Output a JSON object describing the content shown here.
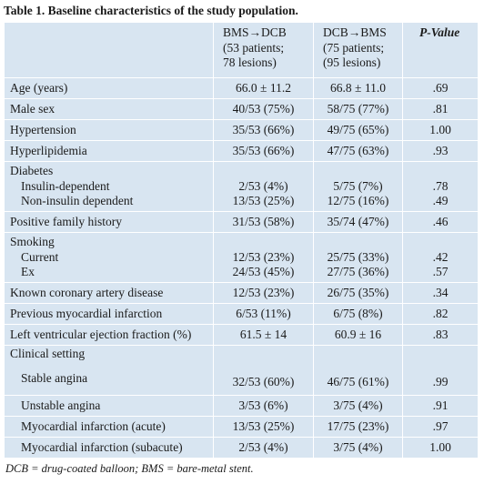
{
  "caption": "Table 1. Baseline characteristics of the study population.",
  "header": {
    "col1": {
      "line1": "BMS→DCB",
      "line2": "(53 patients;",
      "line3": "78 lesions)"
    },
    "col2": {
      "line1": "DCB→BMS",
      "line2": "(75 patients;",
      "line3": "(95 lesions)"
    },
    "col3": {
      "p": "P",
      "rest": "-Value"
    }
  },
  "rows": {
    "age": {
      "label": "Age (years)",
      "a": "66.0 ± 11.2",
      "b": "66.8 ± 11.0",
      "p": ".69"
    },
    "male": {
      "label": "Male sex",
      "a": "40/53 (75%)",
      "b": "58/75 (77%)",
      "p": ".81"
    },
    "hypertension": {
      "label": "Hypertension",
      "a": "35/53 (66%)",
      "b": "49/75 (65%)",
      "p": "1.00"
    },
    "hyperlipidemia": {
      "label": "Hyperlipidemia",
      "a": "35/53 (66%)",
      "b": "47/75 (63%)",
      "p": ".93"
    },
    "diabetes": {
      "label": "Diabetes",
      "insulin": {
        "label": "Insulin-dependent",
        "a": "2/53 (4%)",
        "b": "5/75 (7%)",
        "p": ".78"
      },
      "noninsulin": {
        "label": "Non-insulin dependent",
        "a": "13/53 (25%)",
        "b": "12/75 (16%)",
        "p": ".49"
      }
    },
    "family": {
      "label": "Positive family history",
      "a": "31/53 (58%)",
      "b": "35/74 (47%)",
      "p": ".46"
    },
    "smoking": {
      "label": "Smoking",
      "current": {
        "label": "Current",
        "a": "12/53 (23%)",
        "b": "25/75 (33%)",
        "p": ".42"
      },
      "ex": {
        "label": "Ex",
        "a": "24/53 (45%)",
        "b": "27/75 (36%)",
        "p": ".57"
      }
    },
    "cad": {
      "label": "Known coronary artery disease",
      "a": "12/53 (23%)",
      "b": "26/75 (35%)",
      "p": ".34"
    },
    "mi": {
      "label": "Previous myocardial infarction",
      "a": "6/53 (11%)",
      "b": "6/75 (8%)",
      "p": ".82"
    },
    "lvef": {
      "label": "Left ventricular ejection fraction (%)",
      "a": "61.5 ± 14",
      "b": "60.9 ± 16",
      "p": ".83"
    },
    "clinical": {
      "label": "Clinical setting"
    },
    "stable": {
      "label": "Stable angina",
      "a": "32/53 (60%)",
      "b": "46/75 (61%)",
      "p": ".99"
    },
    "unstable": {
      "label": "Unstable angina",
      "a": "3/53 (6%)",
      "b": "3/75 (4%)",
      "p": ".91"
    },
    "mi_acute": {
      "label": "Myocardial infarction (acute)",
      "a": "13/53 (25%)",
      "b": "17/75 (23%)",
      "p": ".97"
    },
    "mi_subacute": {
      "label": "Myocardial infarction (subacute)",
      "a": "2/53 (4%)",
      "b": "3/75 (4%)",
      "p": "1.00"
    }
  },
  "footnote": "DCB = drug-coated balloon; BMS = bare-metal stent.",
  "colors": {
    "cell_background": "#d8e5f1",
    "grid_lines": "#ffffff",
    "text": "#1a1a1a"
  }
}
